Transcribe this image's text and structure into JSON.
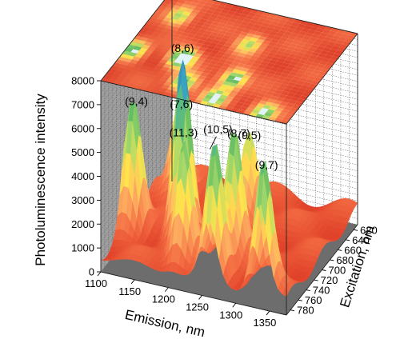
{
  "chart_data": {
    "type": "surface3d",
    "title": "",
    "xlabel": "Emission, nm",
    "ylabel": "Excitation, nm",
    "zlabel": "Photoluminescence intensity",
    "xlim": [
      1100,
      1375
    ],
    "ylim": [
      610,
      790
    ],
    "zlim": [
      0,
      8000
    ],
    "x_ticks": [
      1100,
      1150,
      1200,
      1250,
      1300,
      1350
    ],
    "y_ticks": [
      620,
      640,
      660,
      680,
      700,
      720,
      740,
      760,
      780
    ],
    "z_ticks": [
      0,
      1000,
      2000,
      3000,
      4000,
      5000,
      6000,
      7000,
      8000
    ],
    "grid": true,
    "colormap": [
      "#d7301f",
      "#f46d43",
      "#fdae61",
      "#ffe34d",
      "#a6d96a",
      "#66bd63",
      "#41b6c4",
      "#2c7fb8"
    ],
    "peaks": [
      {
        "label": "(7,6)",
        "emission": 1135,
        "excitation": 650,
        "intensity": 4000
      },
      {
        "label": "(9,4)",
        "emission": 1110,
        "excitation": 725,
        "intensity": 5200
      },
      {
        "label": "(8,6)",
        "emission": 1180,
        "excitation": 720,
        "intensity": 7300
      },
      {
        "label": "(9,5)",
        "emission": 1250,
        "excitation": 670,
        "intensity": 3800
      },
      {
        "label": "(11,3)",
        "emission": 1205,
        "excitation": 760,
        "intensity": 5000
      },
      {
        "label": "(8,7)",
        "emission": 1265,
        "excitation": 735,
        "intensity": 5600
      },
      {
        "label": "(10,5)",
        "emission": 1260,
        "excitation": 775,
        "intensity": 5200
      },
      {
        "label": "(9,7)",
        "emission": 1335,
        "excitation": 780,
        "intensity": 5400
      }
    ]
  }
}
